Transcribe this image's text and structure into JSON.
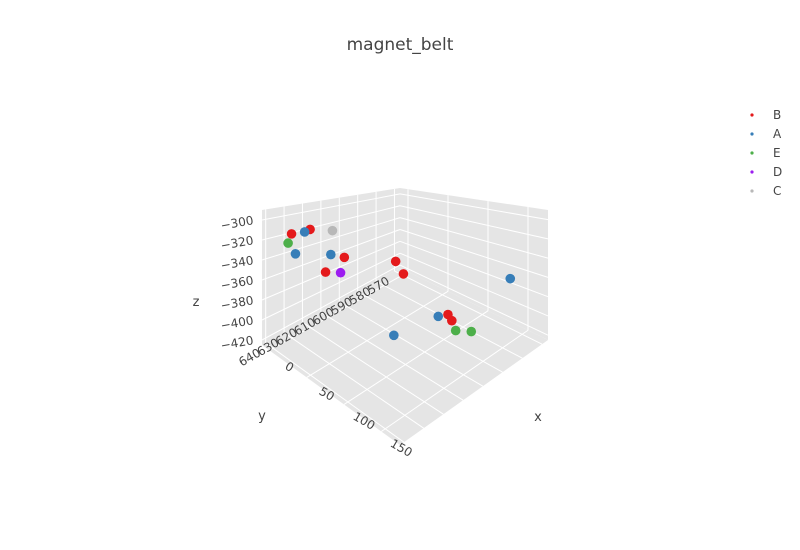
{
  "chart_data": {
    "type": "scatter",
    "projection": "3d",
    "title": "magnet_belt",
    "axes": {
      "x": {
        "label": "x",
        "ticks": [
          "0",
          "50",
          "100",
          "150"
        ],
        "range": [
          -10,
          175
        ]
      },
      "y": {
        "label": "y",
        "ticks": [
          "570",
          "580",
          "590",
          "600",
          "610",
          "620",
          "630",
          "640"
        ],
        "range": [
          567,
          642
        ]
      },
      "z": {
        "label": "z",
        "ticks": [
          "−300",
          "−320",
          "−340",
          "−360",
          "−380",
          "−400",
          "−420"
        ],
        "range": [
          -425,
          -290
        ]
      }
    },
    "grid": true,
    "legend_position": "right",
    "series": [
      {
        "name": "B",
        "color": "#e41a1c",
        "points": [
          {
            "x": -5,
            "y": 628,
            "z": -318
          },
          {
            "x": 0,
            "y": 620,
            "z": -315
          },
          {
            "x": 40,
            "y": 618,
            "z": -330
          },
          {
            "x": 40,
            "y": 628,
            "z": -338
          },
          {
            "x": 70,
            "y": 603,
            "z": -335
          },
          {
            "x": 80,
            "y": 603,
            "z": -345
          },
          {
            "x": 130,
            "y": 600,
            "z": -372
          },
          {
            "x": 140,
            "y": 602,
            "z": -372
          }
        ]
      },
      {
        "name": "A",
        "color": "#377eb8",
        "points": [
          {
            "x": 5,
            "y": 625,
            "z": -313
          },
          {
            "x": 10,
            "y": 632,
            "z": -330
          },
          {
            "x": 15,
            "y": 615,
            "z": -340
          },
          {
            "x": 130,
            "y": 605,
            "z": -368
          },
          {
            "x": 115,
            "y": 622,
            "z": -374
          },
          {
            "x": 140,
            "y": 572,
            "z": -365
          }
        ]
      },
      {
        "name": "E",
        "color": "#4daf4a",
        "points": [
          {
            "x": 20,
            "y": 640,
            "z": -310
          },
          {
            "x": 145,
            "y": 602,
            "z": -380
          },
          {
            "x": 155,
            "y": 598,
            "z": -382
          }
        ]
      },
      {
        "name": "D",
        "color": "#9c1df0",
        "points": [
          {
            "x": 40,
            "y": 620,
            "z": -345
          }
        ]
      },
      {
        "name": "C",
        "color": "#b8b8b8",
        "points": [
          {
            "x": 5,
            "y": 610,
            "z": -320
          }
        ]
      }
    ]
  }
}
